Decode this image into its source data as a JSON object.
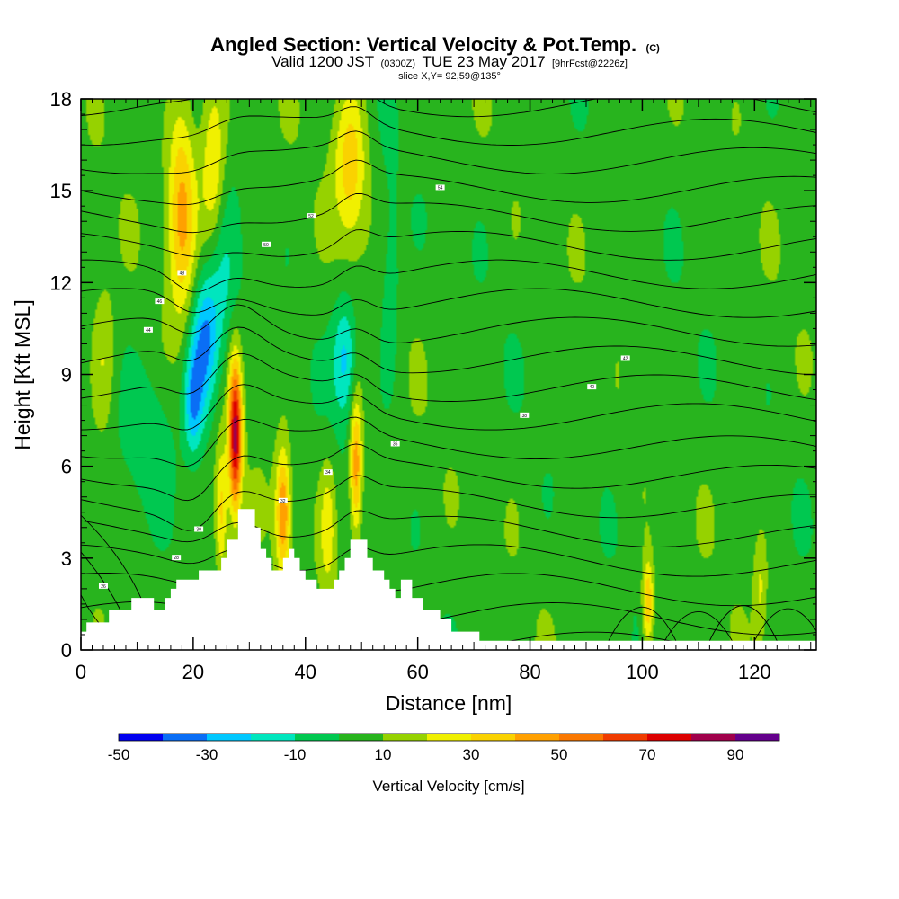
{
  "chart_data": {
    "type": "contour",
    "title": {
      "main": "Angled Section: Vertical Velocity & Pot.Temp.",
      "main_suffix": "(C)",
      "line2_prefix": "Valid 1200 JST",
      "line2_z": "(0300Z)",
      "line2_date": "TUE 23 May 2017",
      "line2_fcst": "[9hrFcst@2226z]",
      "line3": "slice X,Y= 92,59@135°"
    },
    "xlabel": "Distance [nm]",
    "ylabel": "Height [Kft MSL]",
    "xlim": [
      0,
      131
    ],
    "ylim": [
      0,
      18
    ],
    "x_ticks": [
      "0",
      "20",
      "40",
      "60",
      "80",
      "100",
      "120"
    ],
    "x_tick_values": [
      0,
      20,
      40,
      60,
      80,
      100,
      120
    ],
    "y_ticks": [
      "0",
      "3",
      "6",
      "9",
      "12",
      "15",
      "18"
    ],
    "y_tick_values": [
      0,
      3,
      6,
      9,
      12,
      15,
      18
    ],
    "terrain": [
      [
        0,
        0.6
      ],
      [
        1,
        0.6
      ],
      [
        1,
        0.9
      ],
      [
        5,
        0.9
      ],
      [
        5,
        1.3
      ],
      [
        9,
        1.3
      ],
      [
        9,
        1.7
      ],
      [
        13,
        1.7
      ],
      [
        13,
        1.3
      ],
      [
        15,
        1.3
      ],
      [
        15,
        1.7
      ],
      [
        16,
        1.7
      ],
      [
        16,
        2.0
      ],
      [
        17,
        2.0
      ],
      [
        17,
        2.3
      ],
      [
        21,
        2.3
      ],
      [
        21,
        2.6
      ],
      [
        25,
        2.6
      ],
      [
        25,
        3.0
      ],
      [
        26,
        3.0
      ],
      [
        26,
        3.6
      ],
      [
        28,
        3.6
      ],
      [
        28,
        4.6
      ],
      [
        31,
        4.6
      ],
      [
        31,
        4.0
      ],
      [
        32,
        4.0
      ],
      [
        32,
        3.3
      ],
      [
        33,
        3.3
      ],
      [
        33,
        3.0
      ],
      [
        34,
        3.0
      ],
      [
        34,
        2.6
      ],
      [
        36,
        2.6
      ],
      [
        36,
        3.0
      ],
      [
        37,
        3.0
      ],
      [
        37,
        3.3
      ],
      [
        38,
        3.3
      ],
      [
        38,
        3.0
      ],
      [
        39,
        3.0
      ],
      [
        39,
        2.6
      ],
      [
        40,
        2.6
      ],
      [
        40,
        2.3
      ],
      [
        42,
        2.3
      ],
      [
        42,
        2.0
      ],
      [
        45,
        2.0
      ],
      [
        45,
        2.3
      ],
      [
        46,
        2.3
      ],
      [
        46,
        2.6
      ],
      [
        47,
        2.6
      ],
      [
        47,
        3.0
      ],
      [
        48,
        3.0
      ],
      [
        48,
        3.6
      ],
      [
        51,
        3.6
      ],
      [
        51,
        3.0
      ],
      [
        52,
        3.0
      ],
      [
        52,
        2.6
      ],
      [
        54,
        2.6
      ],
      [
        54,
        2.3
      ],
      [
        55,
        2.3
      ],
      [
        55,
        2.0
      ],
      [
        56,
        2.0
      ],
      [
        56,
        1.7
      ],
      [
        57,
        1.7
      ],
      [
        57,
        2.3
      ],
      [
        59,
        2.3
      ],
      [
        59,
        1.7
      ],
      [
        61,
        1.7
      ],
      [
        61,
        1.3
      ],
      [
        64,
        1.3
      ],
      [
        64,
        1.0
      ],
      [
        66,
        1.0
      ],
      [
        66,
        0.6
      ],
      [
        71,
        0.6
      ],
      [
        71,
        0.3
      ],
      [
        131,
        0.3
      ]
    ],
    "colorbar": {
      "label": "Vertical Velocity [cm/s]",
      "tick_labels": [
        "-50",
        "-30",
        "-10",
        "10",
        "30",
        "50",
        "70",
        "90"
      ],
      "tick_values": [
        -50,
        -30,
        -10,
        10,
        30,
        50,
        70,
        90
      ],
      "bins": [
        {
          "from": -50,
          "to": -40,
          "color": "#0000f0"
        },
        {
          "from": -40,
          "to": -30,
          "color": "#0a6ef5"
        },
        {
          "from": -30,
          "to": -20,
          "color": "#00c8ff"
        },
        {
          "from": -20,
          "to": -10,
          "color": "#00e6be"
        },
        {
          "from": -10,
          "to": 0,
          "color": "#00c850"
        },
        {
          "from": 0,
          "to": 10,
          "color": "#28b41e"
        },
        {
          "from": 10,
          "to": 20,
          "color": "#96d200"
        },
        {
          "from": 20,
          "to": 30,
          "color": "#f0f000"
        },
        {
          "from": 30,
          "to": 40,
          "color": "#fad200"
        },
        {
          "from": 40,
          "to": 50,
          "color": "#ffa000"
        },
        {
          "from": 50,
          "to": 60,
          "color": "#fa7800"
        },
        {
          "from": 60,
          "to": 70,
          "color": "#f03c00"
        },
        {
          "from": 70,
          "to": 80,
          "color": "#dc0000"
        },
        {
          "from": 80,
          "to": 90,
          "color": "#a0004b"
        },
        {
          "from": 90,
          "to": 100,
          "color": "#64008c"
        }
      ]
    },
    "velocity_background_cm_s": 5,
    "velocity_features": [
      {
        "x": 4,
        "y": 9.5,
        "sx": 1.5,
        "sy": 1.8,
        "v": 15
      },
      {
        "x": 18,
        "y": 14.5,
        "sx": 1.8,
        "sy": 2.5,
        "v": 38
      },
      {
        "x": 23.5,
        "y": 15.5,
        "sx": 1.5,
        "sy": 2.0,
        "v": 28
      },
      {
        "x": 22,
        "y": 10,
        "sx": 1.8,
        "sy": 1.6,
        "v": -38
      },
      {
        "x": 20,
        "y": 8,
        "sx": 1.2,
        "sy": 1.2,
        "v": -30
      },
      {
        "x": 25,
        "y": 12,
        "sx": 2.0,
        "sy": 2.0,
        "v": -15
      },
      {
        "x": 27.5,
        "y": 7.0,
        "sx": 0.8,
        "sy": 1.7,
        "v": 78
      },
      {
        "x": 25,
        "y": 4.5,
        "sx": 0.8,
        "sy": 1.5,
        "v": 30
      },
      {
        "x": 36,
        "y": 4.5,
        "sx": 0.9,
        "sy": 1.4,
        "v": 45
      },
      {
        "x": 44,
        "y": 4.0,
        "sx": 1.0,
        "sy": 1.5,
        "v": 20
      },
      {
        "x": 49,
        "y": 6.0,
        "sx": 0.8,
        "sy": 1.6,
        "v": 45
      },
      {
        "x": 48,
        "y": 15.8,
        "sx": 2.0,
        "sy": 1.8,
        "v": 30
      },
      {
        "x": 47,
        "y": 9.5,
        "sx": 1.5,
        "sy": 1.4,
        "v": -28
      },
      {
        "x": 12,
        "y": 7.0,
        "sx": 3.0,
        "sy": 1.5,
        "v": -12
      },
      {
        "x": 55,
        "y": 12,
        "sx": 1.5,
        "sy": 2.5,
        "v": -12
      },
      {
        "x": 93,
        "y": 9.5,
        "sx": 1.2,
        "sy": 1.6,
        "v": -8
      },
      {
        "x": 101,
        "y": 1.5,
        "sx": 0.7,
        "sy": 1.0,
        "v": 38
      },
      {
        "x": 121,
        "y": 2.0,
        "sx": 0.8,
        "sy": 1.2,
        "v": 15
      }
    ],
    "pot_temp_contours_C": [
      28,
      30,
      32,
      34,
      36,
      38,
      40,
      42,
      44,
      46,
      48,
      50,
      52,
      54,
      56,
      58,
      60,
      62,
      64,
      66
    ],
    "contour_labels": [
      "26",
      "28",
      "30",
      "32",
      "34",
      "36",
      "38",
      "40",
      "42",
      "44",
      "46",
      "48",
      "50",
      "52",
      "54"
    ]
  }
}
